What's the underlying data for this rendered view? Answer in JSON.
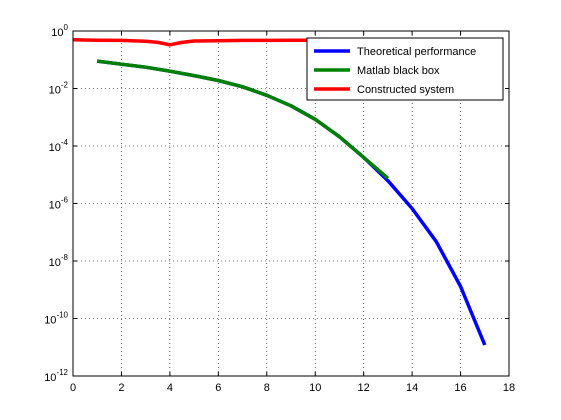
{
  "chart_data": {
    "type": "line",
    "title": "",
    "xlabel": "",
    "ylabel": "",
    "xlim": [
      0,
      18
    ],
    "ylim": [
      1e-12,
      1
    ],
    "yscale": "log",
    "grid": true,
    "legend_position": "top-right",
    "x_ticks": [
      0,
      2,
      4,
      6,
      8,
      10,
      12,
      14,
      16,
      18
    ],
    "x_tick_labels": [
      "0",
      "2",
      "4",
      "6",
      "8",
      "10",
      "12",
      "14",
      "16",
      "18"
    ],
    "y_ticks": [
      1e-12,
      1e-10,
      1e-08,
      1e-06,
      0.0001,
      0.01,
      1
    ],
    "y_tick_labels": [
      {
        "base": "10",
        "exp": "-12"
      },
      {
        "base": "10",
        "exp": "-10"
      },
      {
        "base": "10",
        "exp": "-8"
      },
      {
        "base": "10",
        "exp": "-6"
      },
      {
        "base": "10",
        "exp": "-4"
      },
      {
        "base": "10",
        "exp": "-2"
      },
      {
        "base": "10",
        "exp": "0"
      }
    ],
    "series": [
      {
        "name": "Theoretical performance",
        "color": "#0000ff",
        "x": [
          1,
          2,
          3,
          4,
          5,
          6,
          7,
          8,
          9,
          10,
          11,
          12,
          13,
          14,
          15,
          16,
          17
        ],
        "y": [
          0.09,
          0.07,
          0.055,
          0.04,
          0.028,
          0.019,
          0.0115,
          0.0058,
          0.0025,
          0.00085,
          0.00021,
          4e-05,
          6.2e-06,
          6.7e-07,
          4.7e-08,
          1.3e-09,
          1.2e-11
        ]
      },
      {
        "name": "Matlab black box",
        "color": "#008000",
        "x": [
          1,
          2,
          3,
          4,
          5,
          6,
          7,
          8,
          9,
          10,
          11,
          12,
          13
        ],
        "y": [
          0.09,
          0.07,
          0.055,
          0.04,
          0.028,
          0.019,
          0.0115,
          0.0058,
          0.0025,
          0.00085,
          0.00021,
          4e-05,
          7.5e-06
        ]
      },
      {
        "name": "Constructed system",
        "color": "#ff0000",
        "x": [
          0,
          1,
          2,
          3,
          3.5,
          4,
          4.5,
          5,
          6,
          7,
          8,
          9,
          10,
          11,
          12,
          13,
          14,
          15,
          16,
          17
        ],
        "y": [
          0.5,
          0.48,
          0.47,
          0.44,
          0.4,
          0.33,
          0.4,
          0.45,
          0.46,
          0.47,
          0.47,
          0.48,
          0.48,
          0.48,
          0.49,
          0.49,
          0.5,
          0.49,
          0.48,
          0.47
        ]
      }
    ]
  }
}
